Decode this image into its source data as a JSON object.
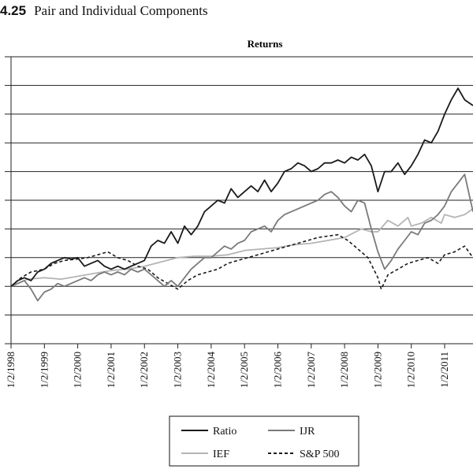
{
  "figure": {
    "number": "4.25",
    "title": "Pair and Individual Components"
  },
  "chart_data": {
    "type": "line",
    "title": "Returns",
    "xlabel": "",
    "ylabel": "",
    "x_tick_labels": [
      "1/2/1998",
      "1/2/1999",
      "1/2/2000",
      "1/2/2001",
      "1/2/2002",
      "1/2/2003",
      "1/2/2004",
      "1/2/2005",
      "1/2/2006",
      "1/2/2007",
      "1/2/2008",
      "1/2/2009",
      "1/2/2010",
      "1/2/2011"
    ],
    "x_range": [
      1998.0,
      2011.85
    ],
    "y_range": [
      -2,
      8
    ],
    "y_gridlines": [
      -2,
      -1,
      0,
      1,
      2,
      3,
      4,
      5,
      6,
      7,
      8
    ],
    "grid": "horizontal",
    "legend_position": "bottom-center",
    "series": [
      {
        "name": "Ratio",
        "color": "#1a1a1a",
        "dash": "solid",
        "x": [
          1998.0,
          1998.2,
          1998.4,
          1998.6,
          1998.8,
          1999.0,
          1999.2,
          1999.4,
          1999.6,
          1999.8,
          2000.0,
          2000.2,
          2000.4,
          2000.6,
          2000.8,
          2001.0,
          2001.2,
          2001.4,
          2001.6,
          2001.8,
          2002.0,
          2002.2,
          2002.4,
          2002.6,
          2002.8,
          2003.0,
          2003.2,
          2003.4,
          2003.6,
          2003.8,
          2004.0,
          2004.2,
          2004.4,
          2004.6,
          2004.8,
          2005.0,
          2005.2,
          2005.4,
          2005.6,
          2005.8,
          2006.0,
          2006.2,
          2006.4,
          2006.6,
          2006.8,
          2007.0,
          2007.2,
          2007.4,
          2007.6,
          2007.8,
          2008.0,
          2008.2,
          2008.4,
          2008.6,
          2008.8,
          2009.0,
          2009.2,
          2009.4,
          2009.6,
          2009.8,
          2010.0,
          2010.2,
          2010.4,
          2010.6,
          2010.8,
          2011.0,
          2011.2,
          2011.4,
          2011.6,
          2011.85
        ],
        "y": [
          0.0,
          0.2,
          0.3,
          0.2,
          0.5,
          0.6,
          0.8,
          0.9,
          1.0,
          0.95,
          1.0,
          0.7,
          0.8,
          0.9,
          0.7,
          0.6,
          0.7,
          0.6,
          0.7,
          0.8,
          0.9,
          1.4,
          1.6,
          1.5,
          1.9,
          1.5,
          2.1,
          1.8,
          2.1,
          2.6,
          2.8,
          3.0,
          2.9,
          3.4,
          3.1,
          3.3,
          3.5,
          3.3,
          3.7,
          3.3,
          3.6,
          4.0,
          4.1,
          4.3,
          4.2,
          4.0,
          4.1,
          4.3,
          4.3,
          4.4,
          4.3,
          4.5,
          4.4,
          4.6,
          4.2,
          3.3,
          4.0,
          4.0,
          4.3,
          3.9,
          4.2,
          4.6,
          5.1,
          5.0,
          5.4,
          6.0,
          6.5,
          6.9,
          6.5,
          6.3
        ]
      },
      {
        "name": "IJR",
        "color": "#7a7a7a",
        "dash": "solid",
        "x": [
          1998.0,
          1998.2,
          1998.4,
          1998.6,
          1998.8,
          1999.0,
          1999.2,
          1999.4,
          1999.6,
          1999.8,
          2000.0,
          2000.2,
          2000.4,
          2000.6,
          2000.8,
          2001.0,
          2001.2,
          2001.4,
          2001.6,
          2001.8,
          2002.0,
          2002.2,
          2002.4,
          2002.6,
          2002.8,
          2003.0,
          2003.2,
          2003.4,
          2003.6,
          2003.8,
          2004.0,
          2004.2,
          2004.4,
          2004.6,
          2004.8,
          2005.0,
          2005.2,
          2005.4,
          2005.6,
          2005.8,
          2006.0,
          2006.2,
          2006.4,
          2006.6,
          2006.8,
          2007.0,
          2007.2,
          2007.4,
          2007.6,
          2007.8,
          2008.0,
          2008.2,
          2008.4,
          2008.6,
          2008.8,
          2009.0,
          2009.2,
          2009.4,
          2009.6,
          2009.8,
          2010.0,
          2010.2,
          2010.4,
          2010.6,
          2010.8,
          2011.0,
          2011.2,
          2011.4,
          2011.6,
          2011.85
        ],
        "y": [
          0.0,
          0.1,
          0.2,
          -0.1,
          -0.5,
          -0.2,
          -0.1,
          0.1,
          0.0,
          0.1,
          0.2,
          0.3,
          0.2,
          0.4,
          0.5,
          0.4,
          0.5,
          0.4,
          0.6,
          0.5,
          0.6,
          0.4,
          0.2,
          0.0,
          0.2,
          0.0,
          0.3,
          0.6,
          0.8,
          1.0,
          1.0,
          1.2,
          1.4,
          1.3,
          1.5,
          1.6,
          1.9,
          2.0,
          2.1,
          1.9,
          2.3,
          2.5,
          2.6,
          2.7,
          2.8,
          2.9,
          3.0,
          3.2,
          3.3,
          3.1,
          2.8,
          2.6,
          3.0,
          2.9,
          2.0,
          1.2,
          0.6,
          0.9,
          1.3,
          1.6,
          1.9,
          1.8,
          2.2,
          2.3,
          2.5,
          2.8,
          3.3,
          3.6,
          3.9,
          2.6
        ]
      },
      {
        "name": "IEF",
        "color": "#b5b5b5",
        "dash": "solid",
        "x": [
          1998.0,
          1998.5,
          1999.0,
          1999.5,
          2000.0,
          2000.5,
          2001.0,
          2001.5,
          2002.0,
          2002.5,
          2003.0,
          2003.5,
          2004.0,
          2004.5,
          2005.0,
          2005.5,
          2006.0,
          2006.5,
          2007.0,
          2007.5,
          2008.0,
          2008.5,
          2008.8,
          2009.0,
          2009.3,
          2009.6,
          2009.9,
          2010.0,
          2010.3,
          2010.6,
          2010.9,
          2011.0,
          2011.3,
          2011.6,
          2011.85
        ],
        "y": [
          0.0,
          0.25,
          0.3,
          0.25,
          0.35,
          0.45,
          0.55,
          0.6,
          0.7,
          0.85,
          1.0,
          1.05,
          1.05,
          1.1,
          1.25,
          1.3,
          1.35,
          1.45,
          1.5,
          1.6,
          1.7,
          2.0,
          1.9,
          1.9,
          2.3,
          2.1,
          2.4,
          2.1,
          2.2,
          2.4,
          2.2,
          2.5,
          2.4,
          2.5,
          2.7
        ]
      },
      {
        "name": "S&P 500",
        "color": "#1a1a1a",
        "dash": "dashed",
        "x": [
          1998.0,
          1998.3,
          1998.6,
          1999.0,
          1999.3,
          1999.6,
          2000.0,
          2000.3,
          2000.6,
          2000.9,
          2001.2,
          2001.5,
          2001.8,
          2002.1,
          2002.4,
          2002.7,
          2003.0,
          2003.3,
          2003.6,
          2003.9,
          2004.2,
          2004.5,
          2004.8,
          2005.1,
          2005.4,
          2005.7,
          2006.0,
          2006.3,
          2006.6,
          2006.9,
          2007.2,
          2007.5,
          2007.8,
          2008.1,
          2008.4,
          2008.7,
          2009.0,
          2009.1,
          2009.3,
          2009.6,
          2009.9,
          2010.2,
          2010.5,
          2010.8,
          2011.0,
          2011.3,
          2011.6,
          2011.85
        ],
        "y": [
          0.0,
          0.3,
          0.5,
          0.6,
          0.8,
          0.9,
          0.95,
          1.0,
          1.1,
          1.2,
          1.0,
          0.9,
          0.7,
          0.6,
          0.3,
          0.1,
          -0.1,
          0.2,
          0.4,
          0.5,
          0.6,
          0.8,
          0.9,
          1.0,
          1.1,
          1.2,
          1.3,
          1.4,
          1.5,
          1.6,
          1.7,
          1.75,
          1.8,
          1.6,
          1.3,
          1.0,
          0.3,
          -0.1,
          0.4,
          0.6,
          0.8,
          0.9,
          1.0,
          0.8,
          1.1,
          1.2,
          1.4,
          1.0
        ]
      }
    ]
  }
}
